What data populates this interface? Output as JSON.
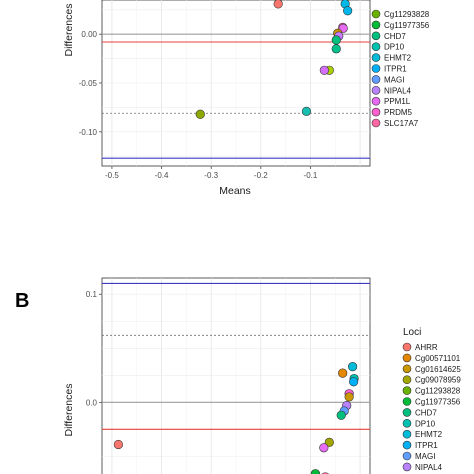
{
  "chart_data": [
    {
      "type": "scatter",
      "panel_label": "",
      "title": "",
      "xlabel": "Means",
      "ylabel": "Differences",
      "xlim": [
        -0.52,
        0.02
      ],
      "ylim": [
        -0.135,
        0.035
      ],
      "xticks": [
        -0.5,
        -0.4,
        -0.3,
        -0.2,
        -0.1
      ],
      "xtick_labels": [
        "-0.5",
        "-0.4",
        "-0.3",
        "-0.2",
        "-0.1"
      ],
      "yticks": [
        0.0,
        -0.05,
        -0.1
      ],
      "ytick_labels": [
        "0.00",
        "-0.05",
        "-0.10"
      ],
      "grid": true,
      "legend": {
        "title": "",
        "placement": "right",
        "entries": [
          "Cg11293828",
          "Cg11977356",
          "CHD7",
          "DP10",
          "EHMT2",
          "ITPR1",
          "MAGI",
          "NIPAL4",
          "PPM1L",
          "PRDM5",
          "SLC17A7"
        ]
      },
      "reference_lines": [
        {
          "y": 0.0,
          "style": "solid",
          "color": "#9e9e9e"
        },
        {
          "y": -0.008,
          "style": "solid",
          "color": "#e8413a"
        },
        {
          "y": -0.081,
          "style": "dashed",
          "color": "#707070"
        },
        {
          "y": -0.127,
          "style": "solid",
          "color": "#3b3bc4"
        }
      ],
      "points": [
        {
          "x": -0.165,
          "y": 0.031,
          "color": "#f8766d"
        },
        {
          "x": -0.03,
          "y": 0.031,
          "color": "#00b8e7"
        },
        {
          "x": -0.025,
          "y": 0.024,
          "color": "#00b5e9"
        },
        {
          "x": -0.035,
          "y": 0.007,
          "color": "#ff62bc"
        },
        {
          "x": -0.034,
          "y": 0.006,
          "color": "#e76bf3"
        },
        {
          "x": -0.045,
          "y": 0.001,
          "color": "#cd9600"
        },
        {
          "x": -0.043,
          "y": -0.002,
          "color": "#c77cff"
        },
        {
          "x": -0.048,
          "y": -0.006,
          "color": "#00bf7d"
        },
        {
          "x": -0.048,
          "y": -0.015,
          "color": "#00c08b"
        },
        {
          "x": -0.062,
          "y": -0.037,
          "color": "#abd000"
        },
        {
          "x": -0.072,
          "y": -0.037,
          "color": "#d470f5"
        },
        {
          "x": -0.322,
          "y": -0.082,
          "color": "#8fa800"
        },
        {
          "x": -0.108,
          "y": -0.079,
          "color": "#17bfb0"
        }
      ],
      "colors": {
        "AHRR": "#f8766d",
        "Cg00571101": "#e58700",
        "Cg01614625": "#c99800",
        "Cg09078959": "#a3a500",
        "Cg11293828": "#6bb100",
        "Cg11977356": "#00ba38",
        "CHD7": "#00bf7d",
        "DP10": "#00c0af",
        "EHMT2": "#00bcd8",
        "ITPR1": "#00b0f6",
        "MAGI": "#619cff",
        "NIPAL4": "#b983ff",
        "PPM1L": "#e76bf3",
        "PRDM5": "#fd61d1",
        "SLC17A7": "#ff67a4"
      }
    },
    {
      "type": "scatter",
      "panel_label": "B",
      "title": "",
      "xlabel": "",
      "ylabel": "Differences",
      "xlim": [
        -0.52,
        0.02
      ],
      "ylim": [
        -0.07,
        0.115
      ],
      "yticks": [
        0.1,
        0.0
      ],
      "ytick_labels": [
        "0.1",
        "0.0"
      ],
      "grid": true,
      "legend": {
        "title": "Loci",
        "placement": "right",
        "entries": [
          "AHRR",
          "Cg00571101",
          "Cg01614625",
          "Cg09078959",
          "Cg11293828",
          "Cg11977356",
          "CHD7",
          "DP10",
          "EHMT2",
          "ITPR1",
          "MAGI",
          "NIPAL4"
        ]
      },
      "reference_lines": [
        {
          "y": 0.11,
          "style": "solid",
          "color": "#3b3bc4"
        },
        {
          "y": 0.062,
          "style": "dashed",
          "color": "#707070"
        },
        {
          "y": 0.0,
          "style": "solid",
          "color": "#9e9e9e"
        },
        {
          "y": -0.025,
          "style": "solid",
          "color": "#e8413a"
        }
      ],
      "points": [
        {
          "x": -0.487,
          "y": -0.039,
          "color": "#f8766d"
        },
        {
          "x": -0.015,
          "y": 0.033,
          "color": "#00bcd8"
        },
        {
          "x": -0.035,
          "y": 0.027,
          "color": "#e58700"
        },
        {
          "x": -0.012,
          "y": 0.022,
          "color": "#00c0af"
        },
        {
          "x": -0.013,
          "y": 0.019,
          "color": "#00b0f6"
        },
        {
          "x": -0.022,
          "y": 0.008,
          "color": "#fd61d1"
        },
        {
          "x": -0.022,
          "y": 0.005,
          "color": "#c99800"
        },
        {
          "x": -0.027,
          "y": -0.003,
          "color": "#b983ff"
        },
        {
          "x": -0.032,
          "y": -0.008,
          "color": "#619cff"
        },
        {
          "x": -0.038,
          "y": -0.012,
          "color": "#00bf7d"
        },
        {
          "x": -0.062,
          "y": -0.037,
          "color": "#a3a500"
        },
        {
          "x": -0.073,
          "y": -0.042,
          "color": "#e76bf3"
        },
        {
          "x": -0.09,
          "y": -0.066,
          "color": "#00ba38"
        },
        {
          "x": -0.07,
          "y": -0.069,
          "color": "#ff67a4"
        }
      ]
    }
  ]
}
